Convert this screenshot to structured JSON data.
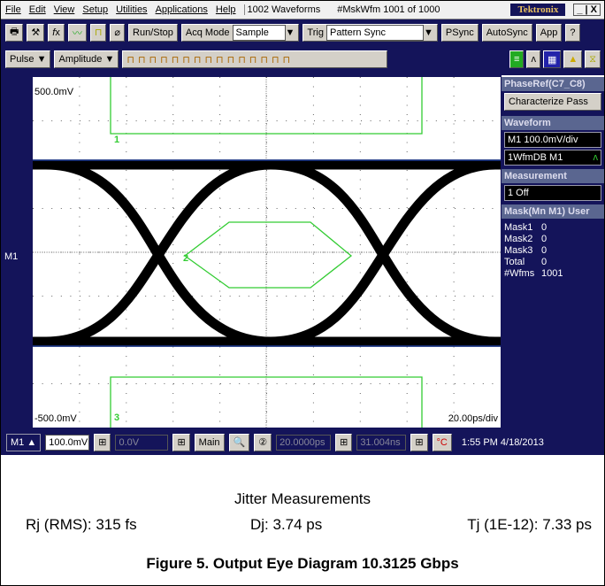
{
  "menu": [
    "File",
    "Edit",
    "View",
    "Setup",
    "Utilities",
    "Applications",
    "Help"
  ],
  "menu_status": [
    "1002 Waveforms",
    "#MskWfm 1001 of 1000"
  ],
  "brand": "Tektronix",
  "toolbar": {
    "run_stop": "Run/Stop",
    "acq_mode_label": "Acq Mode",
    "acq_mode": "Sample",
    "trig_label": "Trig",
    "trig": "Pattern Sync",
    "psync": "PSync",
    "autosync": "AutoSync",
    "app": "App"
  },
  "toolbar2": {
    "pulse": "Pulse",
    "amplitude": "Amplitude"
  },
  "graticule": {
    "top_label": "500.0mV",
    "bottom_label": "-500.0mV",
    "time_div": "20.00ps/div",
    "channel": "M1",
    "mask_labels": [
      "1",
      "2",
      "3"
    ]
  },
  "side_panel": {
    "phase_ref": "PhaseRef(C7_C8)",
    "characterize": "Characterize Pass",
    "waveform_header": "Waveform",
    "waveform_scale": "M1 100.0mV/div",
    "waveform_db": "1WfmDB M1",
    "measurement_header": "Measurement",
    "measurement": "1 Off",
    "mask_header": "Mask(Mn M1) User",
    "mask_counts": [
      [
        "Mask1",
        "0"
      ],
      [
        "Mask2",
        "0"
      ],
      [
        "Mask3",
        "0"
      ],
      [
        "Total",
        "0"
      ],
      [
        "#Wfms",
        "1001"
      ]
    ]
  },
  "status_bar": {
    "channel": "M1",
    "scale": "100.0mV",
    "offset": "0.0V",
    "main": "Main",
    "position": "20.0000ps",
    "record": "31.004ns",
    "time": "1:55 PM 4/18/2013"
  },
  "caption": {
    "heading": "Jitter Measurements",
    "rj": "Rj (RMS): 315 fs",
    "dj": "Dj: 3.74 ps",
    "tj": "Tj (1E-12): 7.33 ps",
    "figure": "Figure 5. Output Eye Diagram 10.3125 Gbps"
  }
}
